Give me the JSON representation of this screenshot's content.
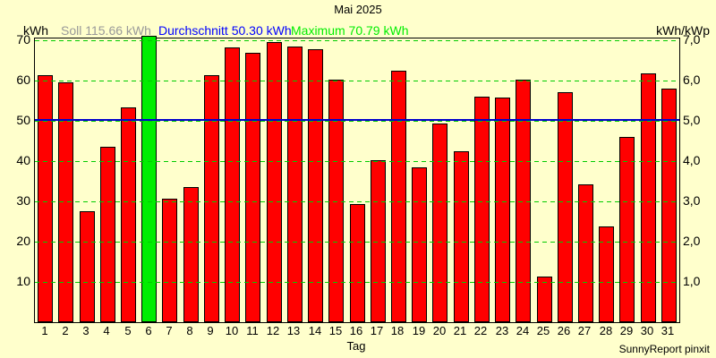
{
  "title": "Mai 2025",
  "header": {
    "left_axis_unit": "kWh",
    "soll_label": "Soll 115.66 kWh",
    "durchschnitt_label": "Durchschnitt 50.30 kWh",
    "maximum_label": "Maximum 70.79 kWh",
    "right_axis_unit": "kWh/kWp"
  },
  "footer": {
    "xlabel": "Tag",
    "credit": "SunnyReport pinxit"
  },
  "colors": {
    "background": "#FFFFCC",
    "bar": "#FF0000",
    "bar_border": "#000000",
    "max_bar": "#00EE00",
    "grid": "#00CC00",
    "average_line": "#0000CC",
    "soll_text": "#999999",
    "durchschnitt_text": "#0000FF",
    "maximum_text": "#00EE00",
    "text": "#000000"
  },
  "chart_data": {
    "type": "bar",
    "title": "Mai 2025",
    "xlabel": "Tag",
    "ylabel_left": "kWh",
    "ylabel_right": "kWh/kWp",
    "grid": true,
    "legend_position": "none",
    "categories": [
      "1",
      "2",
      "3",
      "4",
      "5",
      "6",
      "7",
      "8",
      "9",
      "10",
      "11",
      "12",
      "13",
      "14",
      "15",
      "16",
      "17",
      "18",
      "19",
      "20",
      "21",
      "22",
      "23",
      "24",
      "25",
      "26",
      "27",
      "28",
      "29",
      "30",
      "31"
    ],
    "values": [
      61.0,
      59.2,
      27.1,
      43.2,
      52.9,
      70.79,
      30.2,
      33.2,
      61.0,
      67.9,
      66.4,
      69.2,
      68.0,
      67.4,
      59.9,
      29.0,
      39.7,
      62.0,
      38.0,
      49.0,
      42.0,
      55.6,
      55.4,
      59.8,
      10.9,
      56.8,
      33.7,
      23.4,
      45.7,
      61.3,
      57.6
    ],
    "max_index": 5,
    "maximum_kwh": 70.79,
    "average_kwh": 50.3,
    "soll_kwh": 115.66,
    "ylim": [
      0,
      70
    ],
    "y_ticks_left": [
      10,
      20,
      30,
      40,
      50,
      60,
      70
    ],
    "y_ticks_right_labels": [
      "1,0",
      "2,0",
      "3,0",
      "4,0",
      "5,0",
      "6,0",
      "7,0"
    ],
    "y_ticks_right_values": [
      10,
      20,
      30,
      40,
      50,
      60,
      70
    ]
  }
}
